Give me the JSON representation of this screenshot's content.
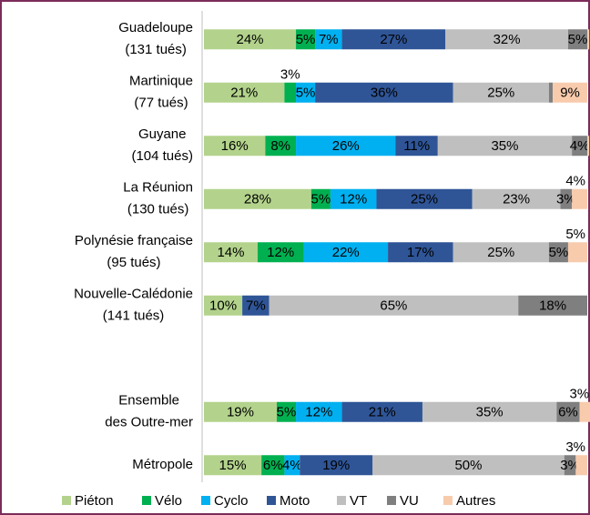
{
  "chart_data": {
    "type": "stacked_barh",
    "categories": [
      [
        "Guadeloupe",
        "(131 tués)"
      ],
      [
        "Martinique",
        "(77 tués)"
      ],
      [
        "Guyane",
        "(104 tués)"
      ],
      [
        "La Réunion",
        "(130 tués)"
      ],
      [
        "Polynésie française",
        "(95 tués)"
      ],
      [
        "Nouvelle-Calédonie",
        "(141 tués)"
      ],
      null,
      [
        "Ensemble",
        "des Outre-mer"
      ],
      [
        "Métropole"
      ]
    ],
    "xlim": [
      0,
      100
    ],
    "legend": "bottom",
    "series": [
      {
        "name": "Piéton",
        "color": "#b3d38c",
        "values": [
          24,
          21,
          16,
          28,
          14,
          10,
          null,
          19,
          15
        ],
        "value_labels": [
          "24%",
          "21%",
          "16%",
          "28%",
          "14%",
          "10%",
          null,
          "19%",
          "15%"
        ]
      },
      {
        "name": "Vélo",
        "color": "#00b050",
        "values": [
          5,
          3,
          8,
          5,
          12,
          0,
          null,
          5,
          6
        ],
        "value_labels": [
          "5%",
          "3%",
          "8%",
          "5%",
          "12%",
          null,
          null,
          "5%",
          "6%"
        ]
      },
      {
        "name": "Cyclo",
        "color": "#00b0f0",
        "values": [
          7,
          5,
          26,
          12,
          22,
          0,
          null,
          12,
          4
        ],
        "value_labels": [
          "7%",
          "5%",
          "26%",
          "12%",
          "22%",
          null,
          null,
          "12%",
          "4%"
        ]
      },
      {
        "name": "Moto",
        "color": "#2f5597",
        "values": [
          27,
          36,
          11,
          25,
          17,
          7,
          null,
          21,
          19
        ],
        "value_labels": [
          "27%",
          "36%",
          "11%",
          "25%",
          "17%",
          "7%",
          null,
          "21%",
          "19%"
        ]
      },
      {
        "name": "VT",
        "color": "#bfbfbf",
        "values": [
          32,
          25,
          35,
          23,
          25,
          65,
          null,
          35,
          50
        ],
        "value_labels": [
          "32%",
          "25%",
          "35%",
          "23%",
          "25%",
          "65%",
          null,
          "35%",
          "50%"
        ]
      },
      {
        "name": "VU",
        "color": "#7f7f7f",
        "values": [
          5,
          1,
          4,
          3,
          5,
          18,
          null,
          6,
          3
        ],
        "value_labels": [
          "5%",
          null,
          "4%",
          "3%",
          "5%",
          "18%",
          null,
          "6%",
          "3%"
        ]
      },
      {
        "name": "Autres",
        "color": "#f8cbad",
        "values": [
          0.5,
          9,
          0.5,
          4,
          5,
          0,
          null,
          3,
          3
        ],
        "value_labels": [
          null,
          "9%",
          null,
          "4%",
          "5%",
          null,
          null,
          "3%",
          "3%"
        ]
      }
    ]
  }
}
